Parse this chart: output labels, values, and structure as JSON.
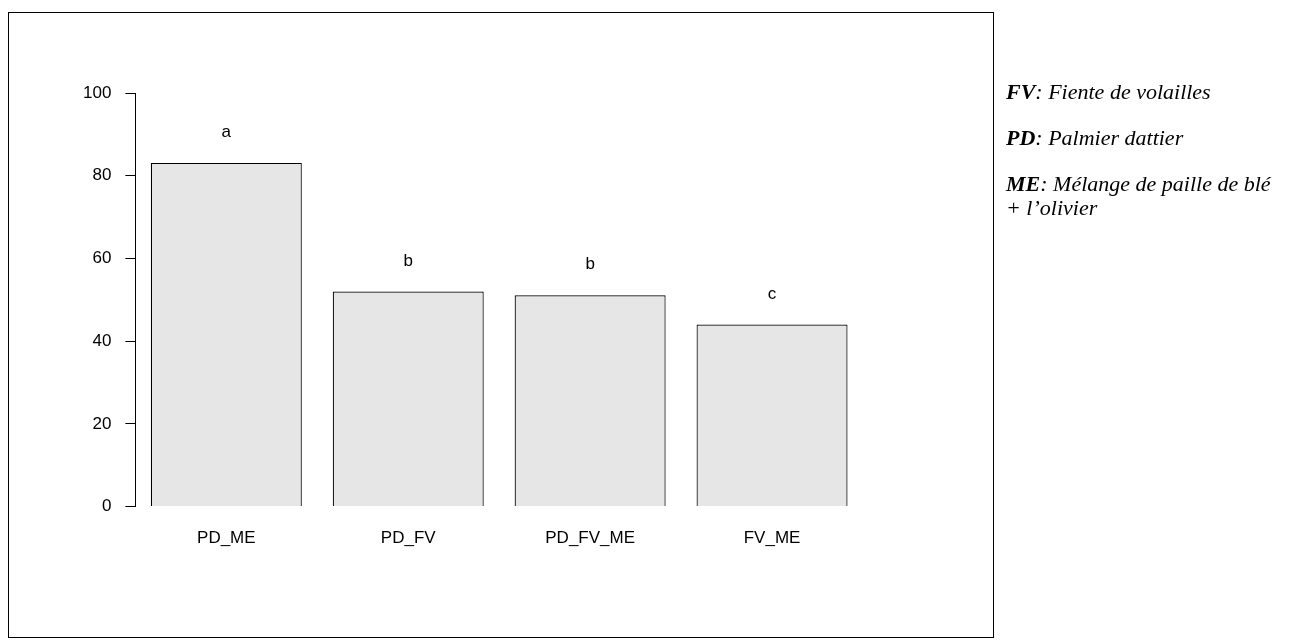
{
  "chart_data": {
    "type": "bar",
    "categories": [
      "PD_ME",
      "PD_FV",
      "PD_FV_ME",
      "FV_ME"
    ],
    "values": [
      83.1,
      52.0,
      51.1,
      44.0
    ],
    "color": "#e6e6e6",
    "value_labels": [
      "a",
      "b",
      "b",
      "c"
    ],
    "ylim": [
      0,
      100
    ],
    "yticks": [
      0,
      20,
      40,
      60,
      80,
      100
    ],
    "annotations": [
      "FV: Fiente de volailles",
      "PD: Palmier dattier",
      "ME: Mélange de paille de blé + l’olivier"
    ]
  }
}
